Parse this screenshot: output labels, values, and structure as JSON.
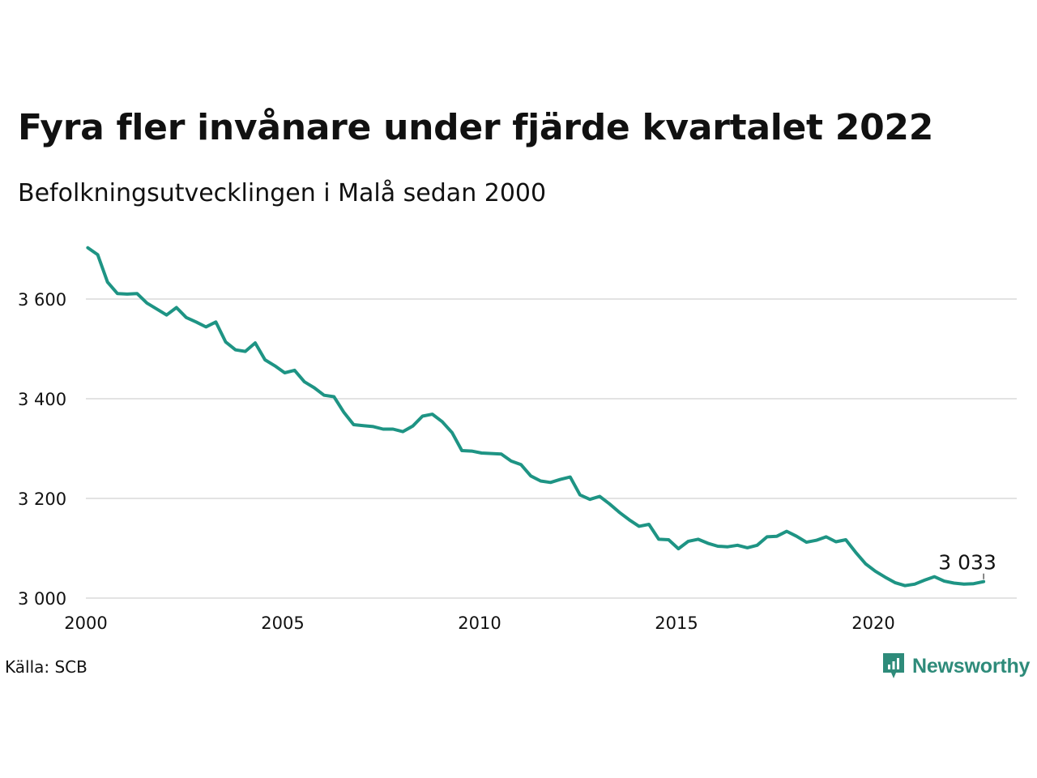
{
  "header": {
    "title": "Fyra fler invånare under fjärde kvartalet 2022",
    "subtitle": "Befolkningsutvecklingen i Malå sedan 2000"
  },
  "footer": {
    "source": "Källa: SCB",
    "brand": "Newsworthy",
    "brand_icon": "newsworthy-logo-icon"
  },
  "colors": {
    "line": "#1e9484",
    "grid": "#e3e3e3",
    "brand": "#2e8b7a"
  },
  "chart_data": {
    "type": "line",
    "title": "Fyra fler invånare under fjärde kvartalet 2022",
    "subtitle": "Befolkningsutvecklingen i Malå sedan 2000",
    "xlabel": "",
    "ylabel": "",
    "x_ticks": [
      2000,
      2005,
      2010,
      2015,
      2020
    ],
    "x_tick_labels": [
      "2000",
      "2005",
      "2010",
      "2015",
      "2020"
    ],
    "y_ticks": [
      3000,
      3200,
      3400,
      3600
    ],
    "y_tick_labels": [
      "3 000",
      "3 200",
      "3 400",
      "3 600"
    ],
    "xlim": [
      2000,
      2023.9
    ],
    "ylim": [
      2990,
      3720
    ],
    "grid": "horizontal",
    "legend": "none",
    "last_value_label": "3 033",
    "series": [
      {
        "frequency": "quarterly",
        "start": "2000-Q1",
        "values": [
          3703,
          3689,
          3634,
          3611,
          3610,
          3611,
          3592,
          3580,
          3568,
          3583,
          3563,
          3554,
          3544,
          3554,
          3514,
          3498,
          3495,
          3512,
          3478,
          3466,
          3452,
          3457,
          3434,
          3422,
          3407,
          3404,
          3373,
          3348,
          3346,
          3344,
          3339,
          3339,
          3334,
          3345,
          3365,
          3369,
          3354,
          3332,
          3296,
          3295,
          3291,
          3290,
          3289,
          3275,
          3268,
          3245,
          3235,
          3232,
          3238,
          3243,
          3207,
          3198,
          3204,
          3189,
          3172,
          3157,
          3144,
          3148,
          3118,
          3117,
          3099,
          3114,
          3118,
          3110,
          3104,
          3103,
          3106,
          3101,
          3106,
          3123,
          3124,
          3134,
          3124,
          3112,
          3116,
          3123,
          3113,
          3117,
          3092,
          3069,
          3054,
          3042,
          3031,
          3025,
          3028,
          3036,
          3043,
          3034,
          3030,
          3028,
          3029,
          3033
        ]
      }
    ]
  }
}
